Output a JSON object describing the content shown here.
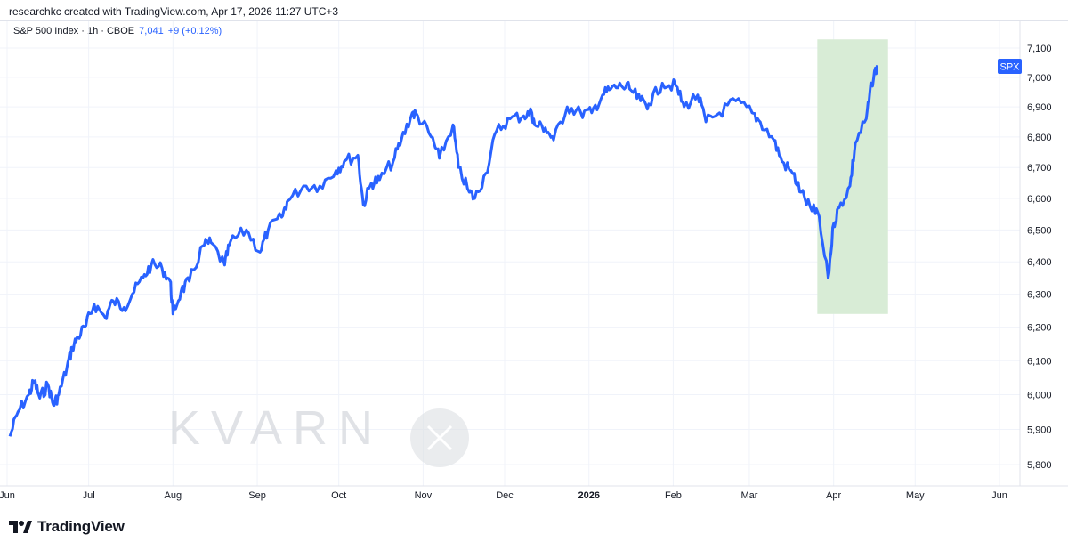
{
  "header": {
    "credit": "researchkc created with TradingView.com, Apr 17, 2026 11:27 UTC+3"
  },
  "legend": {
    "symbol": "S&P 500 Index · 1h · CBOE",
    "last": "7,041",
    "change": "+9 (+0.12%)"
  },
  "watermark": {
    "text": "KVARN"
  },
  "footer": {
    "brand": "TradingView"
  },
  "colors": {
    "line": "#2962ff",
    "highlight": "#d8ecd6",
    "grid": "#f0f3fa",
    "tag": "#2962ff"
  },
  "chart_data": {
    "type": "line",
    "series": [
      {
        "name": "SPX",
        "x": [
          "2025-06-02",
          "2025-06-05",
          "2025-06-09",
          "2025-06-11",
          "2025-06-13",
          "2025-06-16",
          "2025-06-18",
          "2025-06-20",
          "2025-06-23",
          "2025-06-25",
          "2025-06-27",
          "2025-06-30",
          "2025-07-03",
          "2025-07-07",
          "2025-07-10",
          "2025-07-14",
          "2025-07-17",
          "2025-07-21",
          "2025-07-24",
          "2025-07-28",
          "2025-07-31",
          "2025-08-01",
          "2025-08-04",
          "2025-08-07",
          "2025-08-12",
          "2025-08-15",
          "2025-08-20",
          "2025-08-22",
          "2025-08-28",
          "2025-09-02",
          "2025-09-05",
          "2025-09-10",
          "2025-09-12",
          "2025-09-18",
          "2025-09-24",
          "2025-09-30",
          "2025-10-03",
          "2025-10-08",
          "2025-10-10",
          "2025-10-13",
          "2025-10-16",
          "2025-10-21",
          "2025-10-24",
          "2025-10-28",
          "2025-10-30",
          "2025-11-04",
          "2025-11-07",
          "2025-11-12",
          "2025-11-14",
          "2025-11-18",
          "2025-11-20",
          "2025-11-24",
          "2025-11-28",
          "2025-12-03",
          "2025-12-08",
          "2025-12-11",
          "2025-12-12",
          "2025-12-16",
          "2025-12-19",
          "2025-12-24",
          "2025-12-29",
          "2026-01-02",
          "2026-01-06",
          "2026-01-09",
          "2026-01-13",
          "2026-01-16",
          "2026-01-20",
          "2026-01-23",
          "2026-01-28",
          "2026-02-02",
          "2026-02-05",
          "2026-02-10",
          "2026-02-13",
          "2026-02-18",
          "2026-02-24",
          "2026-03-02",
          "2026-03-05",
          "2026-03-10",
          "2026-03-13",
          "2026-03-17",
          "2026-03-20",
          "2026-03-24",
          "2026-03-26",
          "2026-03-30",
          "2026-04-01",
          "2026-04-03",
          "2026-04-07",
          "2026-04-09",
          "2026-04-13",
          "2026-04-15",
          "2026-04-17"
        ],
        "values": [
          5880,
          5950,
          6000,
          6040,
          5990,
          6030,
          5970,
          6000,
          6080,
          6140,
          6170,
          6205,
          6270,
          6230,
          6280,
          6260,
          6300,
          6350,
          6390,
          6380,
          6340,
          6240,
          6310,
          6340,
          6450,
          6460,
          6390,
          6460,
          6500,
          6430,
          6500,
          6540,
          6590,
          6640,
          6640,
          6690,
          6720,
          6740,
          6580,
          6650,
          6660,
          6720,
          6790,
          6880,
          6870,
          6800,
          6730,
          6840,
          6700,
          6620,
          6600,
          6680,
          6820,
          6860,
          6870,
          6880,
          6840,
          6830,
          6790,
          6900,
          6880,
          6880,
          6940,
          6960,
          6970,
          6960,
          6920,
          6910,
          6980,
          6970,
          6900,
          6940,
          6850,
          6880,
          6920,
          6880,
          6850,
          6790,
          6720,
          6680,
          6620,
          6560,
          6560,
          6350,
          6520,
          6570,
          6640,
          6780,
          6860,
          6980,
          7041
        ]
      }
    ],
    "x_ticks": [
      "Jun",
      "Jul",
      "Aug",
      "Sep",
      "Oct",
      "Nov",
      "Dec",
      "2026",
      "Feb",
      "Mar",
      "Apr",
      "May",
      "Jun"
    ],
    "y_ticks": [
      "5,800",
      "5,900",
      "6,000",
      "6,100",
      "6,200",
      "6,300",
      "6,400",
      "6,500",
      "6,600",
      "6,700",
      "6,800",
      "6,900",
      "7,000",
      "7,100"
    ],
    "ylim": [
      5760,
      7160
    ],
    "price_tag": "SPX",
    "highlight": {
      "x_from": "2026-03-26",
      "x_to": "2026-04-21",
      "y_from": 6240,
      "y_to": 7130
    },
    "grid": true
  }
}
